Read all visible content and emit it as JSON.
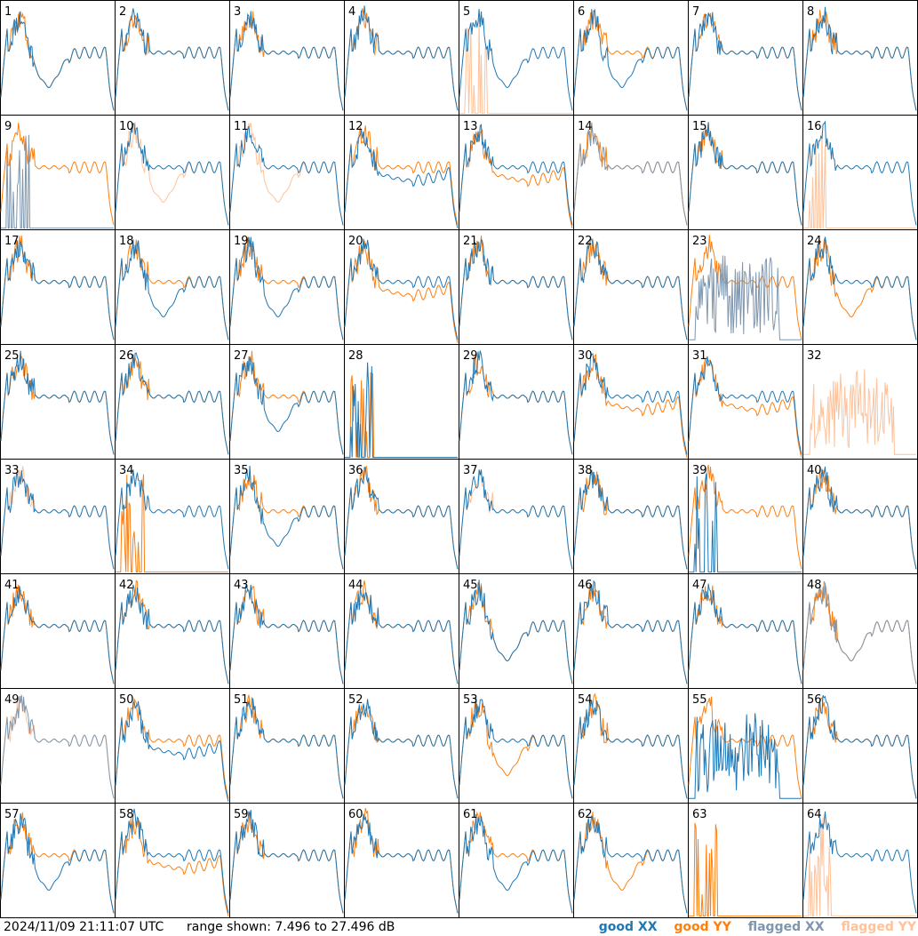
{
  "colors": {
    "good_xx": "#1f77b4",
    "good_yy": "#ff7f0e",
    "flagged_xx": "#7f96ad",
    "flagged_yy": "#ffc29a"
  },
  "footer": {
    "timestamp": "2024/11/09 21:11:07 UTC",
    "range_text": "range shown: 7.496 to 27.496 dB"
  },
  "chart_data": {
    "type": "line",
    "grid": [
      8,
      8
    ],
    "ylim": [
      7.496,
      27.496
    ],
    "yunit": "dB",
    "legend": [
      {
        "key": "good_xx",
        "label": "good XX"
      },
      {
        "key": "good_yy",
        "label": "good YY"
      },
      {
        "key": "flagged_xx",
        "label": "flagged XX"
      },
      {
        "key": "flagged_yy",
        "label": "flagged YY"
      }
    ],
    "panels": [
      {
        "label": "1",
        "xx": "good",
        "yy": "good",
        "xx_shape": "dip",
        "yy_shape": "dip"
      },
      {
        "label": "2",
        "xx": "good",
        "yy": "good",
        "xx_shape": "normal",
        "yy_shape": "normal"
      },
      {
        "label": "3",
        "xx": "good",
        "yy": "good",
        "xx_shape": "normal",
        "yy_shape": "normal"
      },
      {
        "label": "4",
        "xx": "good",
        "yy": "good",
        "xx_shape": "normal",
        "yy_shape": "normal"
      },
      {
        "label": "5",
        "xx": "good",
        "yy": "flagged",
        "xx_shape": "dip",
        "yy_shape": "dead"
      },
      {
        "label": "6",
        "xx": "good",
        "yy": "good",
        "xx_shape": "dip",
        "yy_shape": "normal"
      },
      {
        "label": "7",
        "xx": "good",
        "yy": "good",
        "xx_shape": "normal",
        "yy_shape": "normal"
      },
      {
        "label": "8",
        "xx": "good",
        "yy": "good",
        "xx_shape": "normal",
        "yy_shape": "normal"
      },
      {
        "label": "9",
        "xx": "flagged",
        "yy": "good",
        "xx_shape": "dead",
        "yy_shape": "normal"
      },
      {
        "label": "10",
        "xx": "good",
        "yy": "flagged",
        "xx_shape": "normal",
        "yy_shape": "dip"
      },
      {
        "label": "11",
        "xx": "good",
        "yy": "flagged",
        "xx_shape": "normal",
        "yy_shape": "dip"
      },
      {
        "label": "12",
        "xx": "good",
        "yy": "good",
        "xx_shape": "low",
        "yy_shape": "normal"
      },
      {
        "label": "13",
        "xx": "good",
        "yy": "good",
        "xx_shape": "normal",
        "yy_shape": "low"
      },
      {
        "label": "14",
        "xx": "flagged",
        "yy": "good",
        "xx_shape": "normal",
        "yy_shape": "normal"
      },
      {
        "label": "15",
        "xx": "good",
        "yy": "good",
        "xx_shape": "normal",
        "yy_shape": "normal"
      },
      {
        "label": "16",
        "xx": "good",
        "yy": "flagged",
        "xx_shape": "normal",
        "yy_shape": "dead"
      },
      {
        "label": "17",
        "xx": "good",
        "yy": "good",
        "xx_shape": "normal",
        "yy_shape": "normal"
      },
      {
        "label": "18",
        "xx": "good",
        "yy": "good",
        "xx_shape": "dip",
        "yy_shape": "normal"
      },
      {
        "label": "19",
        "xx": "good",
        "yy": "good",
        "xx_shape": "dip",
        "yy_shape": "normal"
      },
      {
        "label": "20",
        "xx": "good",
        "yy": "good",
        "xx_shape": "normal",
        "yy_shape": "low"
      },
      {
        "label": "21",
        "xx": "good",
        "yy": "good",
        "xx_shape": "normal",
        "yy_shape": "normal"
      },
      {
        "label": "22",
        "xx": "good",
        "yy": "good",
        "xx_shape": "normal",
        "yy_shape": "normal"
      },
      {
        "label": "23",
        "xx": "flagged",
        "yy": "good",
        "xx_shape": "noisy",
        "yy_shape": "normal"
      },
      {
        "label": "24",
        "xx": "good",
        "yy": "good",
        "xx_shape": "normal",
        "yy_shape": "dip"
      },
      {
        "label": "25",
        "xx": "good",
        "yy": "good",
        "xx_shape": "normal",
        "yy_shape": "normal"
      },
      {
        "label": "26",
        "xx": "good",
        "yy": "good",
        "xx_shape": "normal",
        "yy_shape": "normal"
      },
      {
        "label": "27",
        "xx": "good",
        "yy": "good",
        "xx_shape": "dip",
        "yy_shape": "normal"
      },
      {
        "label": "28",
        "xx": "good",
        "yy": "good",
        "xx_shape": "dead",
        "yy_shape": "dead"
      },
      {
        "label": "29",
        "xx": "good",
        "yy": "good",
        "xx_shape": "normal",
        "yy_shape": "normal"
      },
      {
        "label": "30",
        "xx": "good",
        "yy": "good",
        "xx_shape": "normal",
        "yy_shape": "low"
      },
      {
        "label": "31",
        "xx": "good",
        "yy": "good",
        "xx_shape": "normal",
        "yy_shape": "low"
      },
      {
        "label": "32",
        "xx": "none",
        "yy": "flagged",
        "xx_shape": "normal",
        "yy_shape": "noisy"
      },
      {
        "label": "33",
        "xx": "good",
        "yy": "flagged",
        "xx_shape": "normal",
        "yy_shape": "normal"
      },
      {
        "label": "34",
        "xx": "good",
        "yy": "good",
        "xx_shape": "normal",
        "yy_shape": "dead"
      },
      {
        "label": "35",
        "xx": "good",
        "yy": "good",
        "xx_shape": "dip",
        "yy_shape": "normal"
      },
      {
        "label": "36",
        "xx": "good",
        "yy": "good",
        "xx_shape": "normal",
        "yy_shape": "normal"
      },
      {
        "label": "37",
        "xx": "good",
        "yy": "flagged",
        "xx_shape": "normal",
        "yy_shape": "normal"
      },
      {
        "label": "38",
        "xx": "good",
        "yy": "good",
        "xx_shape": "normal",
        "yy_shape": "normal"
      },
      {
        "label": "39",
        "xx": "good",
        "yy": "good",
        "xx_shape": "dead",
        "yy_shape": "normal"
      },
      {
        "label": "40",
        "xx": "good",
        "yy": "good",
        "xx_shape": "normal",
        "yy_shape": "normal"
      },
      {
        "label": "41",
        "xx": "good",
        "yy": "good",
        "xx_shape": "normal",
        "yy_shape": "normal"
      },
      {
        "label": "42",
        "xx": "good",
        "yy": "good",
        "xx_shape": "normal",
        "yy_shape": "normal"
      },
      {
        "label": "43",
        "xx": "good",
        "yy": "good",
        "xx_shape": "normal",
        "yy_shape": "normal"
      },
      {
        "label": "44",
        "xx": "good",
        "yy": "good",
        "xx_shape": "normal",
        "yy_shape": "normal"
      },
      {
        "label": "45",
        "xx": "good",
        "yy": "good",
        "xx_shape": "dip",
        "yy_shape": "dip"
      },
      {
        "label": "46",
        "xx": "good",
        "yy": "good",
        "xx_shape": "normal",
        "yy_shape": "normal"
      },
      {
        "label": "47",
        "xx": "good",
        "yy": "good",
        "xx_shape": "normal",
        "yy_shape": "normal"
      },
      {
        "label": "48",
        "xx": "flagged",
        "yy": "good",
        "xx_shape": "dip",
        "yy_shape": "dip"
      },
      {
        "label": "49",
        "xx": "flagged",
        "yy": "flagged",
        "xx_shape": "normal",
        "yy_shape": "normal"
      },
      {
        "label": "50",
        "xx": "good",
        "yy": "good",
        "xx_shape": "low",
        "yy_shape": "normal"
      },
      {
        "label": "51",
        "xx": "good",
        "yy": "good",
        "xx_shape": "normal",
        "yy_shape": "normal"
      },
      {
        "label": "52",
        "xx": "good",
        "yy": "good",
        "xx_shape": "normal",
        "yy_shape": "normal"
      },
      {
        "label": "53",
        "xx": "good",
        "yy": "good",
        "xx_shape": "normal",
        "yy_shape": "dip"
      },
      {
        "label": "54",
        "xx": "good",
        "yy": "good",
        "xx_shape": "normal",
        "yy_shape": "normal"
      },
      {
        "label": "55",
        "xx": "good",
        "yy": "good",
        "xx_shape": "noisy",
        "yy_shape": "normal"
      },
      {
        "label": "56",
        "xx": "good",
        "yy": "good",
        "xx_shape": "normal",
        "yy_shape": "normal"
      },
      {
        "label": "57",
        "xx": "good",
        "yy": "good",
        "xx_shape": "dip",
        "yy_shape": "normal"
      },
      {
        "label": "58",
        "xx": "good",
        "yy": "good",
        "xx_shape": "normal",
        "yy_shape": "low"
      },
      {
        "label": "59",
        "xx": "good",
        "yy": "good",
        "xx_shape": "normal",
        "yy_shape": "normal"
      },
      {
        "label": "60",
        "xx": "good",
        "yy": "good",
        "xx_shape": "normal",
        "yy_shape": "normal"
      },
      {
        "label": "61",
        "xx": "good",
        "yy": "good",
        "xx_shape": "dip",
        "yy_shape": "normal"
      },
      {
        "label": "62",
        "xx": "good",
        "yy": "good",
        "xx_shape": "normal",
        "yy_shape": "dip"
      },
      {
        "label": "63",
        "xx": "none",
        "yy": "good",
        "xx_shape": "normal",
        "yy_shape": "dead"
      },
      {
        "label": "64",
        "xx": "good",
        "yy": "flagged",
        "xx_shape": "normal",
        "yy_shape": "dead"
      }
    ]
  }
}
